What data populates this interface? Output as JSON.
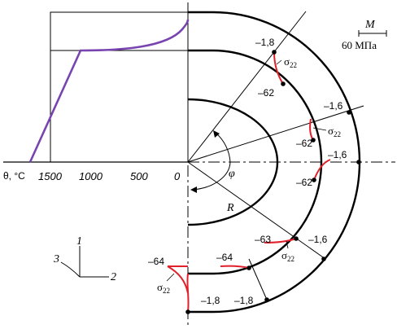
{
  "axis": {
    "theta_label": "θ, °C",
    "ticks": [
      "1500",
      "1000",
      "500",
      "0"
    ]
  },
  "scale": {
    "symbol": "M",
    "value": "60 МПа"
  },
  "symbols": {
    "radius": "R",
    "angle": "φ",
    "sigma": "σ",
    "sigma_sub": "22"
  },
  "triad": {
    "a1": "1",
    "a2": "2",
    "a3": "3"
  },
  "values": {
    "v1": "–1,8",
    "v2": "–62",
    "v3": "–1,6",
    "v4": "–62",
    "v5": "–1,6",
    "v6": "–62",
    "v7": "–63",
    "v8": "–1,6",
    "v9": "–64",
    "v10": "–64",
    "v11": "–1,8",
    "v12": "–1,8"
  },
  "colors": {
    "curve": "#7744b0",
    "sigma": "#e0202a",
    "ink": "#000000"
  }
}
